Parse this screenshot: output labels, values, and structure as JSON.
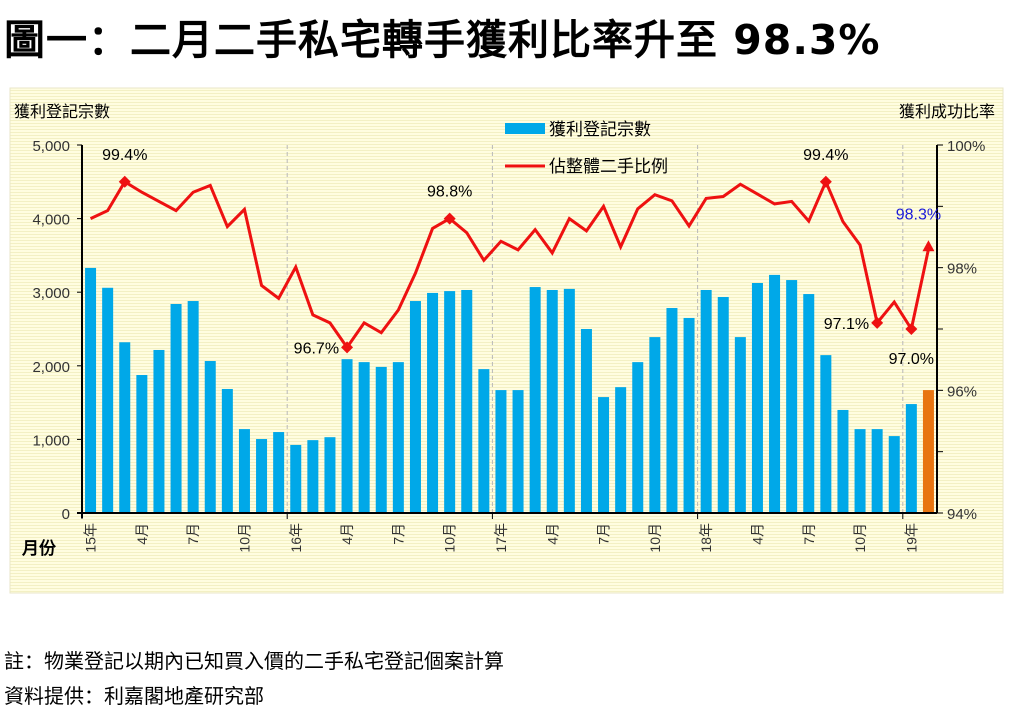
{
  "title": "圖一：二月二手私宅轉手獲利比率升至 98.3%",
  "chart_data": {
    "type": "bar+line",
    "title": "圖一：二月二手私宅轉手獲利比率升至 98.3%",
    "xlabel": "月份",
    "ylabel": "獲利登記宗數",
    "y2label": "獲利成功比率",
    "ylim": [
      0,
      5000
    ],
    "y2lim": [
      94,
      100
    ],
    "yticks": [
      "0",
      "1,000",
      "2,000",
      "3,000",
      "4,000",
      "5,000"
    ],
    "y2ticks": [
      "94%",
      "96%",
      "98%",
      "100%"
    ],
    "grid": false,
    "legend": {
      "position": "top-center",
      "entries": [
        "獲利登記宗數",
        "佔整體二手比例"
      ]
    },
    "x_tick_labels": [
      {
        "index": 0,
        "label": "15年"
      },
      {
        "index": 3,
        "label": "4月"
      },
      {
        "index": 6,
        "label": "7月"
      },
      {
        "index": 9,
        "label": "10月"
      },
      {
        "index": 12,
        "label": "16年"
      },
      {
        "index": 15,
        "label": "4月"
      },
      {
        "index": 18,
        "label": "7月"
      },
      {
        "index": 21,
        "label": "10月"
      },
      {
        "index": 24,
        "label": "17年"
      },
      {
        "index": 27,
        "label": "4月"
      },
      {
        "index": 30,
        "label": "7月"
      },
      {
        "index": 33,
        "label": "10月"
      },
      {
        "index": 36,
        "label": "18年"
      },
      {
        "index": 39,
        "label": "4月"
      },
      {
        "index": 42,
        "label": "7月"
      },
      {
        "index": 45,
        "label": "10月"
      },
      {
        "index": 48,
        "label": "19年"
      }
    ],
    "series": [
      {
        "name": "獲利登記宗數",
        "type": "bar",
        "color": "#00a8e8",
        "highlight_color": "#e87511",
        "highlight_index": 49,
        "values": [
          3330,
          3060,
          2320,
          1875,
          2215,
          2840,
          2880,
          2065,
          1685,
          1140,
          1005,
          1100,
          925,
          990,
          1030,
          2090,
          2050,
          1985,
          2050,
          2880,
          2990,
          3015,
          3030,
          1955,
          1670,
          1670,
          3070,
          3030,
          3045,
          2500,
          1575,
          1710,
          2050,
          2390,
          2785,
          2650,
          3030,
          2935,
          2390,
          3125,
          3235,
          3165,
          2975,
          2145,
          1400,
          1140,
          1140,
          1045,
          1480,
          1670
        ]
      },
      {
        "name": "佔整體二手比例",
        "type": "line",
        "axis": "right",
        "color": "#ee1111",
        "values": [
          98.8,
          98.93,
          99.4,
          99.23,
          99.08,
          98.93,
          99.23,
          99.34,
          98.67,
          98.95,
          97.71,
          97.5,
          98.01,
          97.23,
          97.1,
          96.7,
          97.1,
          96.94,
          97.31,
          97.91,
          98.64,
          98.8,
          98.57,
          98.12,
          98.43,
          98.29,
          98.62,
          98.24,
          98.8,
          98.6,
          99.0,
          98.34,
          98.96,
          99.19,
          99.09,
          98.68,
          99.13,
          99.16,
          99.36,
          99.2,
          99.04,
          99.08,
          98.76,
          99.4,
          98.75,
          98.37,
          97.1,
          97.44,
          97.0,
          98.3
        ]
      }
    ],
    "annotations": [
      {
        "index": 2,
        "label": "99.4%",
        "pos": "above"
      },
      {
        "index": 15,
        "label": "96.7%",
        "pos": "left"
      },
      {
        "index": 21,
        "label": "98.8%",
        "pos": "above"
      },
      {
        "index": 43,
        "label": "99.4%",
        "pos": "above"
      },
      {
        "index": 46,
        "label": "97.1%",
        "pos": "left"
      },
      {
        "index": 48,
        "label": "97.0%",
        "pos": "below"
      },
      {
        "index": 49,
        "label": "98.3%",
        "pos": "above",
        "color": "#1a1ad8"
      }
    ]
  },
  "notes": [
    "註：物業登記以期內已知買入價的二手私宅登記個案計算",
    "資料提供：利嘉閣地產研究部"
  ]
}
